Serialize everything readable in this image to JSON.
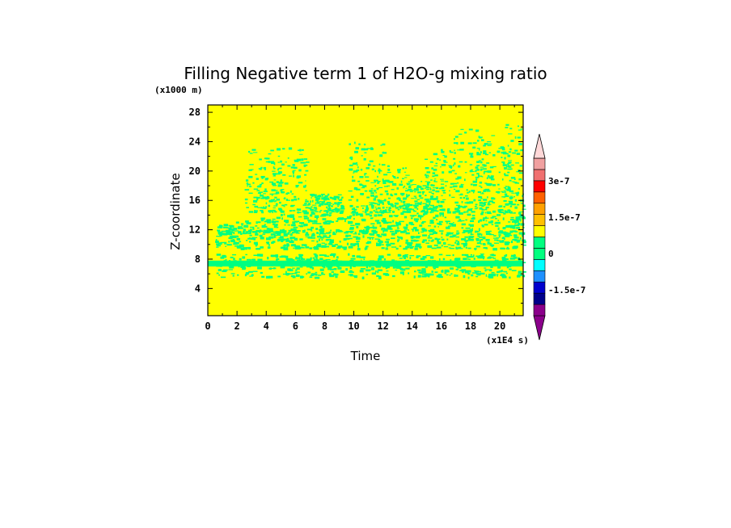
{
  "chart_data": {
    "type": "heatmap",
    "title": "Filling Negative term 1 of H2O-g mixing ratio",
    "xlabel": "Time",
    "ylabel": "Z-coordinate",
    "x_units": "(x1E4 s)",
    "y_units": "(x1000 m)",
    "xlim": [
      0,
      21.6
    ],
    "ylim": [
      0.3,
      29
    ],
    "x_ticks": [
      "0",
      "2",
      "4",
      "6",
      "8",
      "10",
      "12",
      "14",
      "16",
      "18",
      "20"
    ],
    "y_ticks": [
      "4",
      "8",
      "12",
      "16",
      "20",
      "24",
      "28"
    ],
    "colorbar": {
      "levels": [
        "-2.25e-7",
        "-1.875e-7",
        "-1.5e-7",
        "-1.125e-7",
        "-7.5e-8",
        "-3.75e-8",
        "0",
        "3.75e-8",
        "7.5e-8",
        "1.125e-7",
        "1.5e-7",
        "1.875e-7",
        "2.25e-7",
        "2.625e-7",
        "3e-7",
        "3.375e-7"
      ],
      "colors": [
        "#8b008b",
        "#00008b",
        "#0000cd",
        "#1e90ff",
        "#00ffff",
        "#00ff80",
        "#ffff00",
        "#ffff00",
        "#ffc000",
        "#ff8c00",
        "#ff4500",
        "#ff0000",
        "#f08080",
        "#f0a8a8",
        "#ffc8c8",
        "#ffe4e4"
      ],
      "tick_labels": [
        "3e-7",
        "1.5e-7",
        "0",
        "-1.5e-7"
      ],
      "extend": "both"
    },
    "background_value": "0",
    "features": [
      {
        "description": "continuous green band",
        "z": [
          7.0,
          7.8
        ],
        "time": [
          0,
          21.6
        ]
      },
      {
        "description": "scattered green patches",
        "z": [
          5.5,
          14.5
        ],
        "time": [
          0.5,
          21.6
        ]
      },
      {
        "description": "sparse green streaks aloft",
        "z": [
          14.5,
          26.5
        ],
        "time": [
          2.5,
          21.6
        ]
      }
    ]
  }
}
